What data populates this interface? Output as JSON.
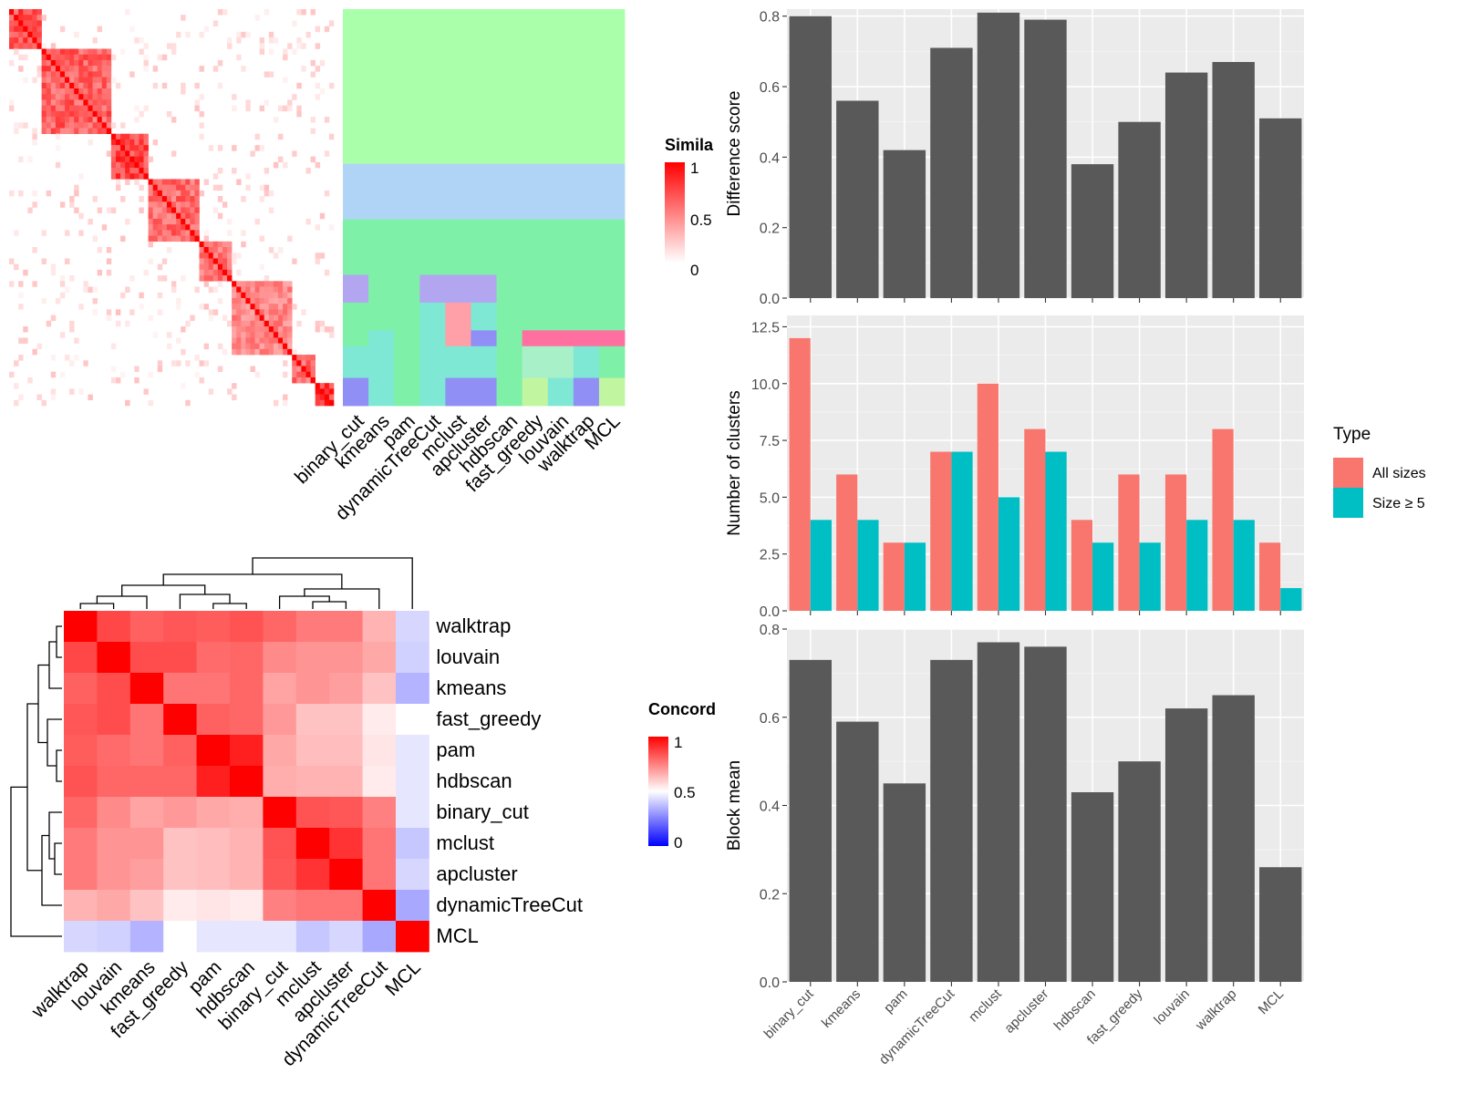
{
  "chart_data": [
    {
      "id": "similarity_heatmap",
      "type": "heatmap",
      "legend": {
        "title": "Simila",
        "ticks": [
          "1",
          "0.5",
          "0"
        ],
        "colors": [
          "#ffffff",
          "#ff0000"
        ]
      },
      "column_labels": [
        "binary_cut",
        "kmeans",
        "pam",
        "dynamicTreeCut",
        "mclust",
        "apcluster",
        "hdbscan",
        "fast_greedy",
        "louvain",
        "walktrap",
        "MCL"
      ],
      "blocks": [
        {
          "start": 0,
          "end": 0.09,
          "level": 0.9
        },
        {
          "start": 0.09,
          "end": 0.31,
          "level": 0.8
        },
        {
          "start": 0.31,
          "end": 0.42,
          "level": 0.95
        },
        {
          "start": 0.42,
          "end": 0.58,
          "level": 0.75
        },
        {
          "start": 0.58,
          "end": 0.68,
          "level": 0.7
        },
        {
          "start": 0.68,
          "end": 0.86,
          "level": 0.6
        },
        {
          "start": 0.86,
          "end": 0.93,
          "level": 0.75
        },
        {
          "start": 0.93,
          "end": 1.0,
          "level": 0.95
        }
      ]
    },
    {
      "id": "cluster_assignment",
      "type": "heatmap",
      "columns": [
        "binary_cut",
        "kmeans",
        "pam",
        "dynamicTreeCut",
        "mclust",
        "apcluster",
        "hdbscan",
        "fast_greedy",
        "louvain",
        "walktrap",
        "MCL"
      ],
      "palette": [
        "#aaffaa",
        "#b0d4f6",
        "#7ff0a8",
        "#b3a6f0",
        "#ff9fa8",
        "#7fe8d4",
        "#a8f0c8",
        "#8f8ff5",
        "#ff6fa0",
        "#c2f5a0"
      ],
      "row_groups": [
        {
          "frac": 0.39,
          "values": [
            0,
            0,
            0,
            0,
            0,
            0,
            0,
            0,
            0,
            0,
            0
          ]
        },
        {
          "frac": 0.14,
          "values": [
            1,
            1,
            1,
            1,
            1,
            1,
            1,
            1,
            1,
            1,
            1
          ]
        },
        {
          "frac": 0.14,
          "values": [
            2,
            2,
            2,
            2,
            2,
            2,
            2,
            2,
            2,
            2,
            2
          ]
        },
        {
          "frac": 0.07,
          "values": [
            3,
            2,
            2,
            3,
            3,
            3,
            2,
            2,
            2,
            2,
            2
          ]
        },
        {
          "frac": 0.07,
          "values": [
            2,
            2,
            2,
            5,
            4,
            5,
            2,
            2,
            2,
            2,
            2
          ]
        },
        {
          "frac": 0.04,
          "values": [
            2,
            5,
            2,
            5,
            4,
            7,
            2,
            8,
            8,
            8,
            8
          ]
        },
        {
          "frac": 0.08,
          "values": [
            5,
            5,
            2,
            5,
            5,
            5,
            2,
            6,
            6,
            5,
            2
          ]
        },
        {
          "frac": 0.07,
          "values": [
            7,
            5,
            2,
            5,
            7,
            7,
            2,
            9,
            5,
            7,
            9
          ]
        }
      ]
    },
    {
      "id": "concordance_heatmap",
      "type": "heatmap",
      "legend": {
        "title": "Concord",
        "ticks": [
          "1",
          "0.5",
          "0"
        ],
        "colors": [
          "#0000ff",
          "#ffffff",
          "#ff0000"
        ]
      },
      "rows": [
        "walktrap",
        "louvain",
        "kmeans",
        "fast_greedy",
        "pam",
        "hdbscan",
        "binary_cut",
        "mclust",
        "apcluster",
        "dynamicTreeCut",
        "MCL"
      ],
      "cols": [
        "walktrap",
        "louvain",
        "kmeans",
        "fast_greedy",
        "pam",
        "hdbscan",
        "binary_cut",
        "mclust",
        "apcluster",
        "dynamicTreeCut",
        "MCL"
      ],
      "values": [
        [
          1.0,
          0.86,
          0.81,
          0.83,
          0.82,
          0.84,
          0.8,
          0.76,
          0.76,
          0.65,
          0.42
        ],
        [
          0.86,
          1.0,
          0.85,
          0.85,
          0.79,
          0.8,
          0.73,
          0.71,
          0.71,
          0.67,
          0.41
        ],
        [
          0.81,
          0.85,
          1.0,
          0.77,
          0.77,
          0.8,
          0.68,
          0.71,
          0.69,
          0.62,
          0.35
        ],
        [
          0.83,
          0.85,
          0.77,
          1.0,
          0.81,
          0.8,
          0.7,
          0.62,
          0.62,
          0.54,
          0.5
        ],
        [
          0.82,
          0.79,
          0.77,
          0.81,
          1.0,
          0.94,
          0.67,
          0.63,
          0.63,
          0.55,
          0.45
        ],
        [
          0.84,
          0.8,
          0.8,
          0.8,
          0.94,
          1.0,
          0.66,
          0.65,
          0.65,
          0.54,
          0.45
        ],
        [
          0.8,
          0.73,
          0.68,
          0.7,
          0.67,
          0.66,
          1.0,
          0.84,
          0.83,
          0.75,
          0.45
        ],
        [
          0.76,
          0.71,
          0.71,
          0.62,
          0.63,
          0.65,
          0.84,
          1.0,
          0.9,
          0.77,
          0.39
        ],
        [
          0.76,
          0.71,
          0.69,
          0.62,
          0.63,
          0.65,
          0.83,
          0.9,
          1.0,
          0.77,
          0.42
        ],
        [
          0.65,
          0.67,
          0.62,
          0.54,
          0.55,
          0.54,
          0.75,
          0.77,
          0.77,
          1.0,
          0.33
        ],
        [
          0.42,
          0.41,
          0.35,
          0.5,
          0.45,
          0.45,
          0.45,
          0.39,
          0.42,
          0.33,
          1.0
        ]
      ]
    },
    {
      "id": "difference_score",
      "type": "bar",
      "ylabel": "Difference score",
      "ylim": [
        0,
        0.82
      ],
      "yticks": [
        0.0,
        0.2,
        0.4,
        0.6,
        0.8
      ],
      "ytick_labels": [
        "0.0",
        "0.2",
        "0.4",
        "0.6",
        "0.8"
      ],
      "categories": [
        "binary_cut",
        "kmeans",
        "pam",
        "dynamicTreeCut",
        "mclust",
        "apcluster",
        "hdbscan",
        "fast_greedy",
        "louvain",
        "walktrap",
        "MCL"
      ],
      "values": [
        0.8,
        0.56,
        0.42,
        0.71,
        0.81,
        0.79,
        0.38,
        0.5,
        0.64,
        0.67,
        0.51
      ],
      "color": "#595959"
    },
    {
      "id": "number_of_clusters",
      "type": "bar",
      "ylabel": "Number of clusters",
      "ylim": [
        0,
        13
      ],
      "yticks": [
        0,
        2.5,
        5,
        7.5,
        10,
        12.5
      ],
      "ytick_labels": [
        "0.0",
        "2.5",
        "5.0",
        "7.5",
        "10.0",
        "12.5"
      ],
      "categories": [
        "binary_cut",
        "kmeans",
        "pam",
        "dynamicTreeCut",
        "mclust",
        "apcluster",
        "hdbscan",
        "fast_greedy",
        "louvain",
        "walktrap",
        "MCL"
      ],
      "series": [
        {
          "name": "All sizes",
          "values": [
            12,
            6,
            3,
            7,
            10,
            8,
            4,
            6,
            6,
            8,
            3
          ],
          "color": "#f8766d"
        },
        {
          "name": "Size ≥ 5",
          "values": [
            4,
            4,
            3,
            7,
            5,
            7,
            3,
            3,
            4,
            4,
            1
          ],
          "color": "#00bfc4"
        }
      ],
      "legend": {
        "title": "Type",
        "position": "right"
      }
    },
    {
      "id": "block_mean",
      "type": "bar",
      "ylabel": "Block mean",
      "ylim": [
        0,
        0.8
      ],
      "yticks": [
        0.0,
        0.2,
        0.4,
        0.6,
        0.8
      ],
      "ytick_labels": [
        "0.0",
        "0.2",
        "0.4",
        "0.6",
        "0.8"
      ],
      "categories": [
        "binary_cut",
        "kmeans",
        "pam",
        "dynamicTreeCut",
        "mclust",
        "apcluster",
        "hdbscan",
        "fast_greedy",
        "louvain",
        "walktrap",
        "MCL"
      ],
      "values": [
        0.73,
        0.59,
        0.45,
        0.73,
        0.77,
        0.76,
        0.43,
        0.5,
        0.62,
        0.65,
        0.26
      ],
      "color": "#595959"
    }
  ]
}
